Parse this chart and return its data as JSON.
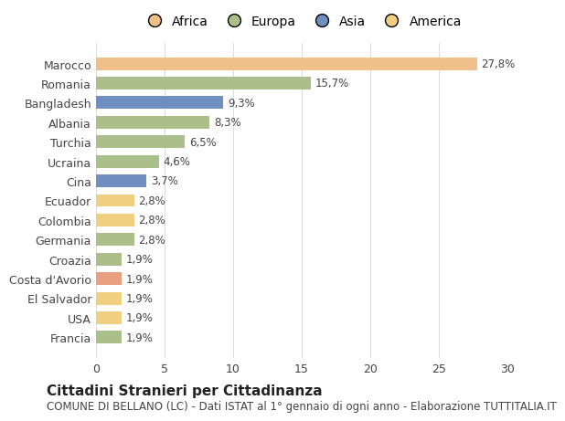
{
  "categories": [
    "Marocco",
    "Romania",
    "Bangladesh",
    "Albania",
    "Turchia",
    "Ucraina",
    "Cina",
    "Ecuador",
    "Colombia",
    "Germania",
    "Croazia",
    "Costa d'Avorio",
    "El Salvador",
    "USA",
    "Francia"
  ],
  "values": [
    27.8,
    15.7,
    9.3,
    8.3,
    6.5,
    4.6,
    3.7,
    2.8,
    2.8,
    2.8,
    1.9,
    1.9,
    1.9,
    1.9,
    1.9
  ],
  "labels": [
    "27,8%",
    "15,7%",
    "9,3%",
    "8,3%",
    "6,5%",
    "4,6%",
    "3,7%",
    "2,8%",
    "2,8%",
    "2,8%",
    "1,9%",
    "1,9%",
    "1,9%",
    "1,9%",
    "1,9%"
  ],
  "colors": [
    "#F0C08A",
    "#AABF8A",
    "#6E8FBF",
    "#AABF8A",
    "#AABF8A",
    "#AABF8A",
    "#6E8FBF",
    "#F0D080",
    "#F0D080",
    "#AABF8A",
    "#AABF8A",
    "#E8A080",
    "#F0D080",
    "#F0D080",
    "#AABF8A"
  ],
  "continent_colors": {
    "Africa": "#F0C08A",
    "Europa": "#AABF8A",
    "Asia": "#6E8FBF",
    "America": "#F0D080"
  },
  "legend_order": [
    "Africa",
    "Europa",
    "Asia",
    "America"
  ],
  "title": "Cittadini Stranieri per Cittadinanza",
  "subtitle": "COMUNE DI BELLANO (LC) - Dati ISTAT al 1° gennaio di ogni anno - Elaborazione TUTTITALIA.IT",
  "xlim": [
    0,
    30
  ],
  "xticks": [
    0,
    5,
    10,
    15,
    20,
    25,
    30
  ],
  "background_color": "#ffffff",
  "grid_color": "#dddddd",
  "bar_height": 0.65,
  "title_fontsize": 11,
  "subtitle_fontsize": 8.5,
  "label_fontsize": 8.5,
  "tick_fontsize": 9,
  "legend_fontsize": 10
}
